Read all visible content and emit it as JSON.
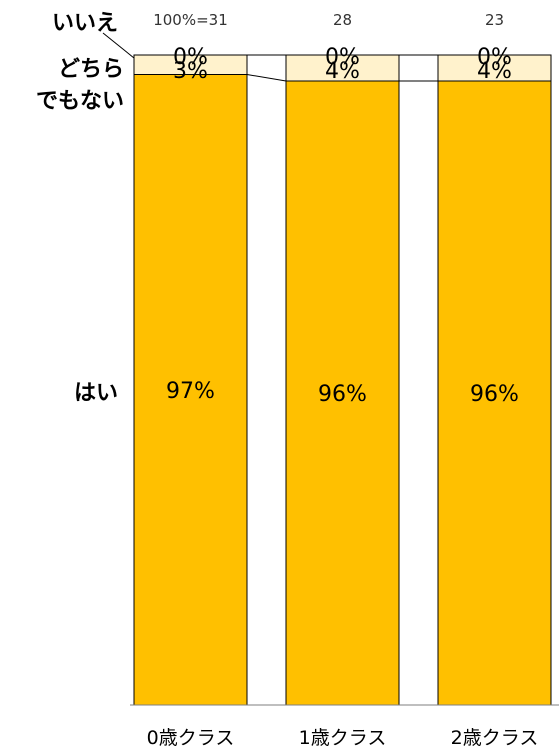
{
  "chart_data": {
    "type": "bar",
    "stacked": true,
    "normalized": true,
    "categories": [
      "0歳クラス",
      "1歳クラス",
      "2歳クラス"
    ],
    "n_labels": [
      "100%=31",
      "28",
      "23"
    ],
    "series": [
      {
        "name": "はい",
        "values": [
          97,
          96,
          96
        ],
        "labels": [
          "97%",
          "96%",
          "96%"
        ],
        "color": "#FFC000"
      },
      {
        "name": "どちらでもない",
        "values": [
          3,
          4,
          4
        ],
        "labels": [
          "3%",
          "4%",
          "4%"
        ],
        "color": "#FFF2CC"
      },
      {
        "name": "いいえ",
        "values": [
          0,
          0,
          0
        ],
        "labels": [
          "0%",
          "0%",
          "0%"
        ],
        "color": "#FFF2CC"
      }
    ],
    "legend_labels": {
      "no": "いいえ",
      "neutral_line1": "どちら",
      "neutral_line2": "でもない",
      "yes": "はい"
    },
    "ylim": [
      0,
      100
    ],
    "title": "",
    "xlabel": "",
    "ylabel": "",
    "grid": false,
    "legend_placement": "left"
  }
}
